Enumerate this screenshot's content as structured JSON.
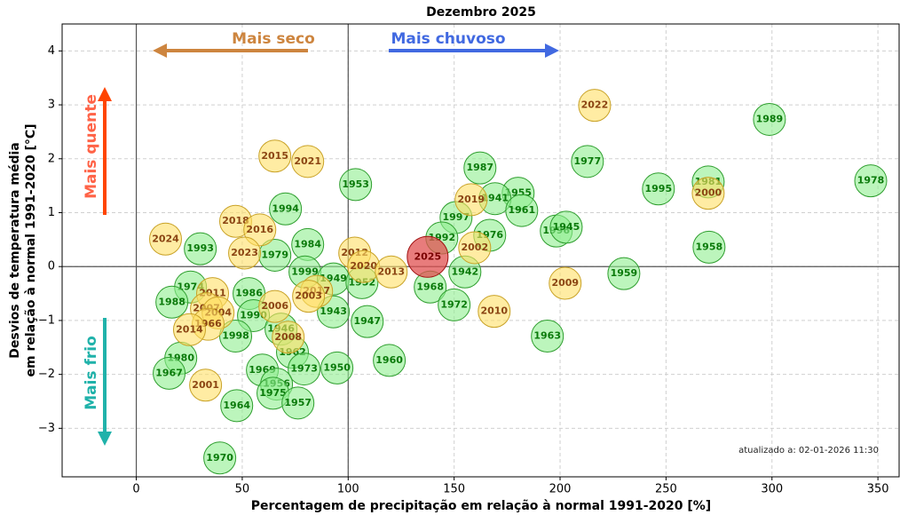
{
  "chart_data": {
    "type": "scatter",
    "title": "Dezembro 2025",
    "x_label": "Percentagem de precipitação em relação à normal 1991-2020 [%]",
    "y_label": [
      "Desvios de temperatura média",
      "em relação à normal 1991-2020 [°C]"
    ],
    "annotations": {
      "drier": "Mais seco",
      "wetter": "Mais chuvoso",
      "hotter": "Mais quente",
      "colder": "Mais frio",
      "updated": "atualizado a: 02-01-2026 11:30"
    },
    "xlim": [
      -35,
      360
    ],
    "ylim": [
      -3.9,
      4.5
    ],
    "xticks": [
      0,
      50,
      100,
      150,
      200,
      250,
      300,
      350
    ],
    "yticks": [
      {
        "value": -3,
        "label": "−3"
      },
      {
        "value": -2,
        "label": "−2"
      },
      {
        "value": -1,
        "label": "−1"
      },
      0,
      1,
      2,
      3,
      4
    ],
    "grid": true,
    "reference_lines": {
      "x": [
        0,
        100
      ],
      "y": [
        0
      ]
    },
    "series": [
      {
        "color": "#90ee90",
        "edgecolor": "#2e9e2e",
        "text_color": "#0a7a0a",
        "labels": [
          "1989",
          "1977",
          "1987",
          "1953",
          "1978",
          "1981",
          "1995",
          "1955",
          "1941",
          "1961",
          "1994",
          "1997",
          "1996",
          "1945",
          "1992",
          "1976",
          "1984",
          "1993",
          "1958",
          "1979",
          "1999",
          "1942",
          "1959",
          "1949",
          "1952",
          "1974",
          "1986",
          "1968",
          "1988",
          "1972",
          "1943",
          "1990",
          "1947",
          "1946",
          "1998",
          "1963",
          "1962",
          "1980",
          "1960",
          "1969",
          "1973",
          "1950",
          "1967",
          "1956",
          "1975",
          "1957",
          "1964",
          "1970"
        ],
        "x": [
          298.8,
          212.9,
          162.2,
          103.5,
          346.6,
          269.9,
          246.4,
          180.2,
          169.3,
          181.9,
          70.4,
          150.9,
          198.2,
          202.9,
          144.2,
          166.8,
          80.9,
          30.2,
          270.3,
          65.4,
          79.6,
          155.1,
          230.1,
          93,
          106.5,
          25.6,
          53.2,
          138.7,
          16.8,
          150,
          93,
          55.3,
          109,
          68.3,
          46.9,
          194,
          73.7,
          21,
          119.4,
          59.5,
          79.2,
          94.7,
          15.5,
          66.2,
          64.5,
          76.3,
          47.4,
          39.4
        ],
        "values": [
          2.73,
          1.95,
          1.83,
          1.52,
          1.59,
          1.57,
          1.44,
          1.36,
          1.26,
          1.04,
          1.07,
          0.91,
          0.66,
          0.73,
          0.53,
          0.58,
          0.41,
          0.33,
          0.36,
          0.21,
          -0.1,
          -0.1,
          -0.13,
          -0.23,
          -0.3,
          -0.38,
          -0.5,
          -0.38,
          -0.66,
          -0.71,
          -0.84,
          -0.91,
          -1.02,
          -1.16,
          -1.29,
          -1.29,
          -1.59,
          -1.7,
          -1.74,
          -1.92,
          -1.9,
          -1.88,
          -1.98,
          -2.18,
          -2.35,
          -2.53,
          -2.58,
          -3.55
        ]
      },
      {
        "color": "#ffe066",
        "edgecolor": "#c9a227",
        "text_color": "#8b4513",
        "labels": [
          "2022",
          "2015",
          "2021",
          "2000",
          "2019",
          "2018",
          "2016",
          "2024",
          "2002",
          "2023",
          "2012",
          "2020",
          "2013",
          "2009",
          "2017",
          "2011",
          "2003",
          "2006",
          "2007",
          "2004",
          "2010",
          "1966",
          "2014",
          "2008",
          "2001"
        ],
        "x": [
          216.3,
          65.4,
          80.9,
          269.9,
          158,
          46.9,
          58.3,
          13.8,
          159.7,
          51.1,
          103.1,
          107.3,
          120.3,
          202.4,
          85.1,
          36,
          81.3,
          65.4,
          33.1,
          38.6,
          168.9,
          33.9,
          25.1,
          71.7,
          32.7
        ],
        "values": [
          2.99,
          2.05,
          1.95,
          1.36,
          1.24,
          0.84,
          0.68,
          0.51,
          0.35,
          0.25,
          0.25,
          0.0,
          -0.1,
          -0.31,
          -0.46,
          -0.5,
          -0.55,
          -0.74,
          -0.78,
          -0.86,
          -0.83,
          -1.07,
          -1.17,
          -1.31,
          -2.2
        ]
      },
      {
        "color": "#e05050",
        "edgecolor": "#a01010",
        "text_color": "#7a0000",
        "highlight": true,
        "labels": [
          "2025"
        ],
        "x": [
          137.5
        ],
        "values": [
          0.18
        ]
      }
    ]
  }
}
